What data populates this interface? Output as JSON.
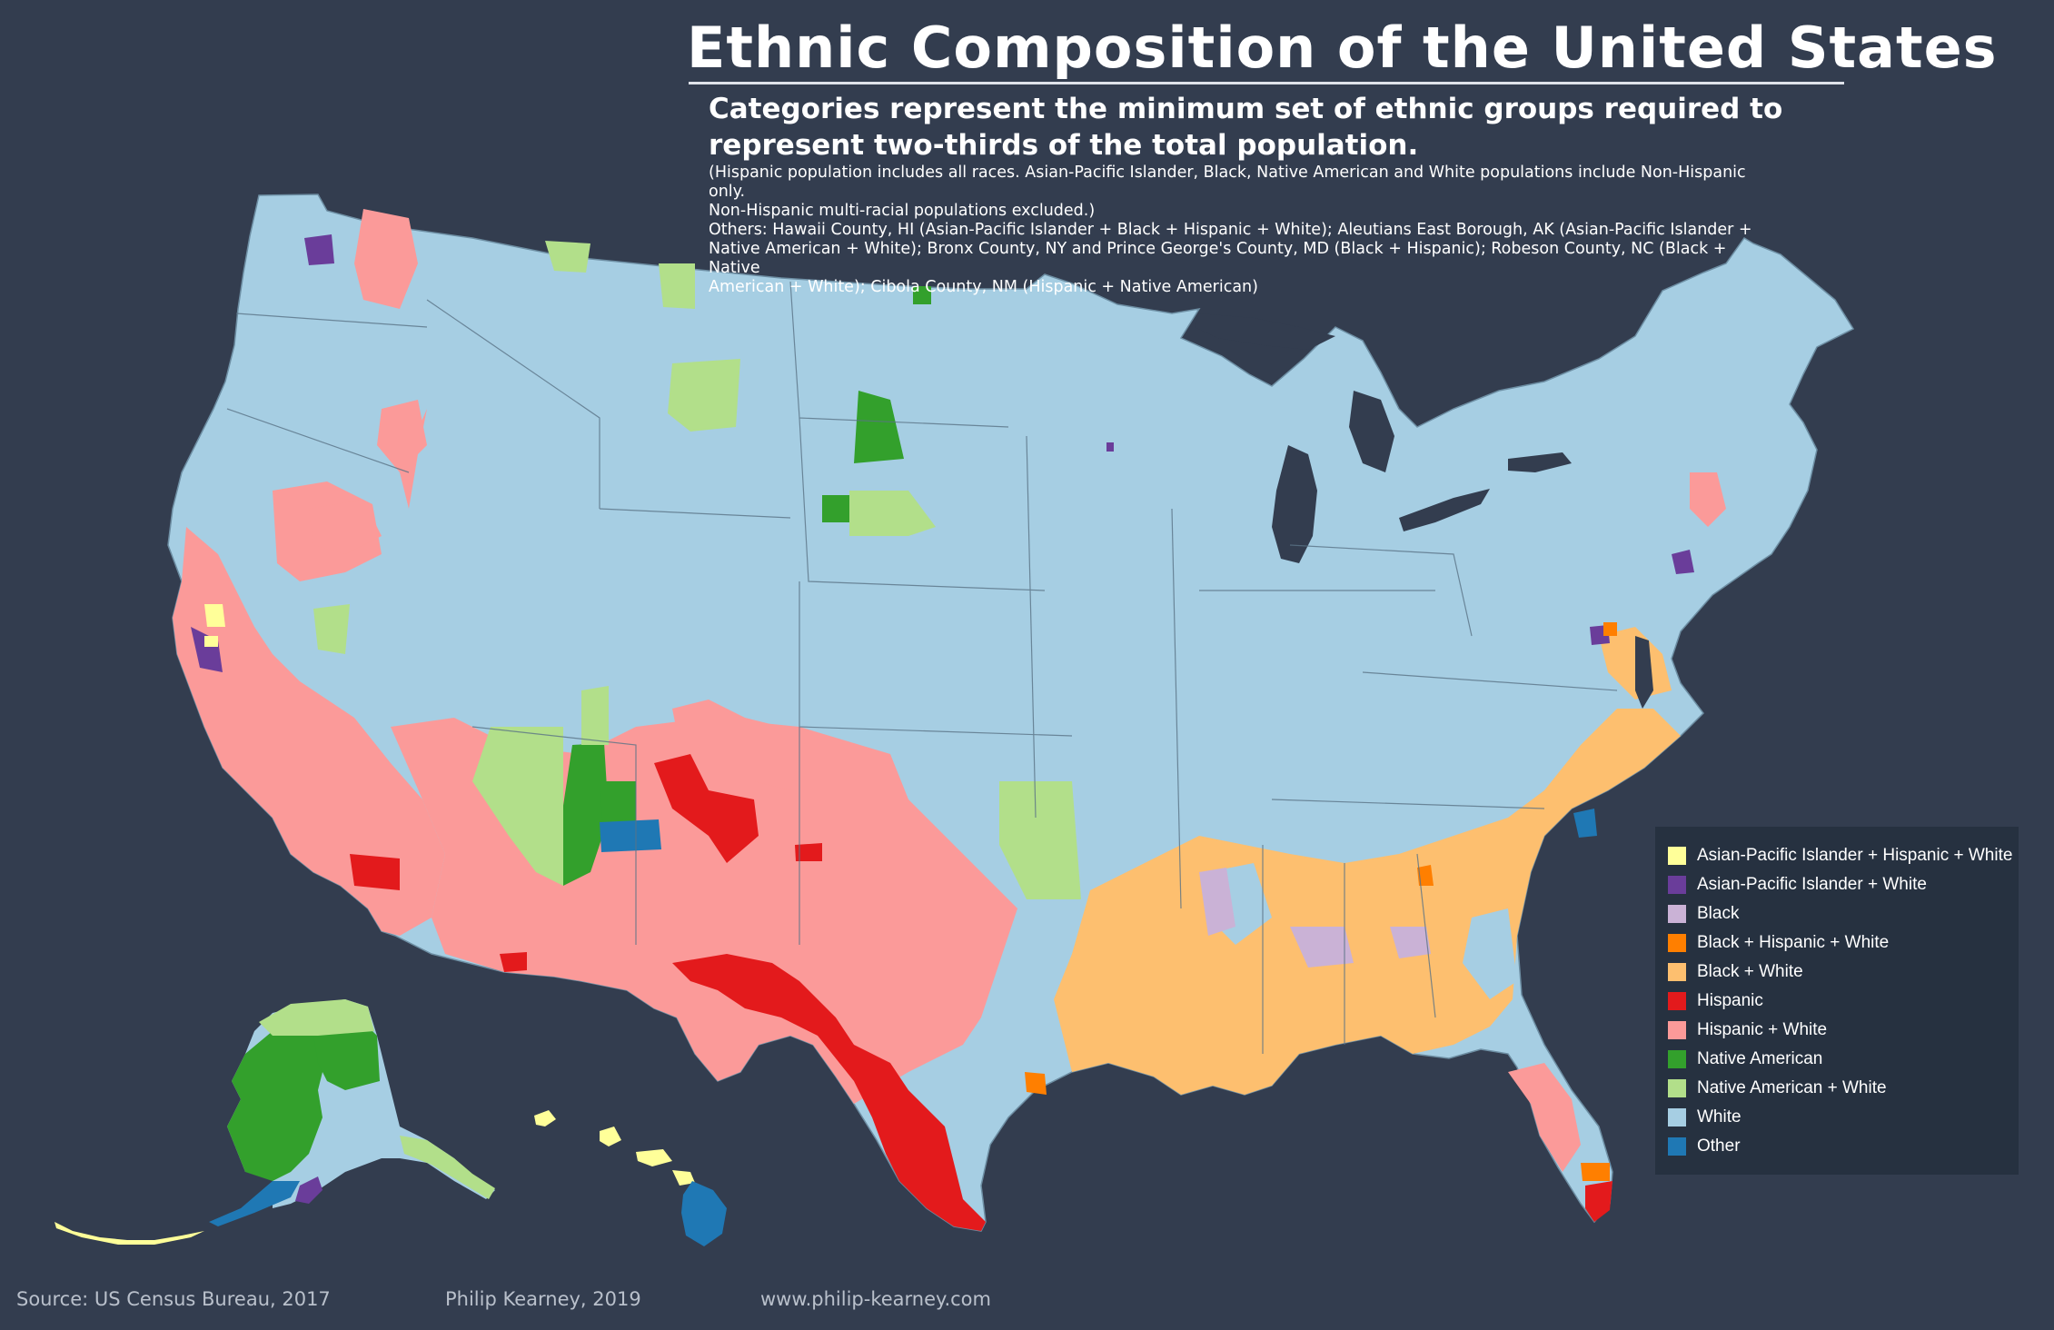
{
  "title": "Ethnic Composition of the United States",
  "subtitle_line1": "Categories represent the minimum set of ethnic groups required to",
  "subtitle_line2": "represent two-thirds of the total population.",
  "note_lines": [
    "(Hispanic population includes all races.  Asian-Pacific Islander, Black, Native American and White populations include Non-Hispanic only.",
    "Non-Hispanic multi-racial populations excluded.)",
    "Others:  Hawaii County, HI (Asian-Pacific Islander + Black + Hispanic + White); Aleutians East Borough, AK (Asian-Pacific Islander +",
    "Native American + White); Bronx County, NY and Prince George's County, MD (Black + Hispanic); Robeson County, NC (Black + Native",
    "American + White); Cibola County, NM (Hispanic + Native American)"
  ],
  "legend": [
    {
      "label": "Asian-Pacific Islander + Hispanic + White",
      "color": "#ffff99"
    },
    {
      "label": "Asian-Pacific Islander + White",
      "color": "#6a3d9a"
    },
    {
      "label": "Black",
      "color": "#cab2d6"
    },
    {
      "label": "Black + Hispanic + White",
      "color": "#ff7f00"
    },
    {
      "label": "Black + White",
      "color": "#fdbf6f"
    },
    {
      "label": "Hispanic",
      "color": "#e31a1c"
    },
    {
      "label": "Hispanic + White",
      "color": "#fb9a99"
    },
    {
      "label": "Native American",
      "color": "#33a02c"
    },
    {
      "label": "Native American + White",
      "color": "#b2df8a"
    },
    {
      "label": "White",
      "color": "#a6cee3"
    },
    {
      "label": "Other",
      "color": "#1f78b4"
    }
  ],
  "footer": {
    "source": "Source:  US Census Bureau, 2017",
    "author": "Philip Kearney, 2019",
    "website": "www.philip-kearney.com"
  },
  "colors": {
    "background": "#333d4f",
    "legend_background": "#263140",
    "white_region": "#a6cee3",
    "hispanic_white": "#fb9a99",
    "hispanic": "#e31a1c",
    "black_white": "#fdbf6f",
    "black": "#cab2d6",
    "native": "#33a02c",
    "native_white": "#b2df8a",
    "other": "#1f78b4",
    "api_white": "#6a3d9a",
    "api_hisp_white": "#ffff99",
    "black_hisp_white": "#ff7f00"
  }
}
